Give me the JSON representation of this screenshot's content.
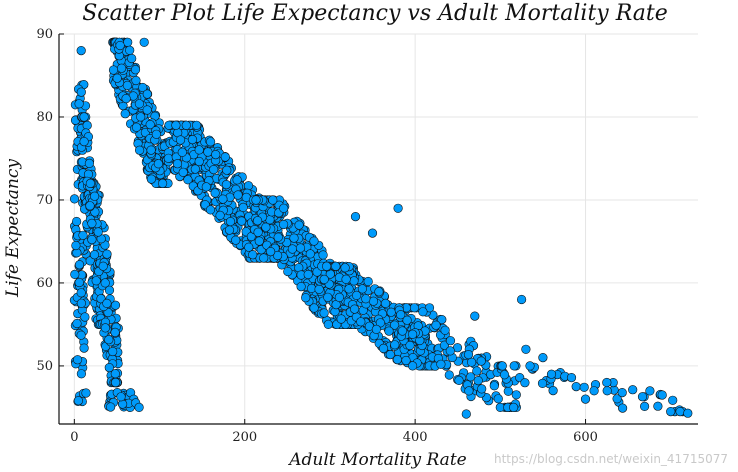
{
  "chart_data": {
    "type": "scatter",
    "title": "Scatter Plot Life Expectancy vs Adult Mortality Rate",
    "xlabel": "Adult Mortality Rate",
    "ylabel": "Life Expectancy",
    "xlim": [
      -18,
      732
    ],
    "ylim": [
      43,
      90
    ],
    "xticks": [
      0,
      200,
      400,
      600
    ],
    "yticks": [
      50,
      60,
      70,
      80,
      90
    ],
    "grid": true,
    "legend": "none",
    "colors": {
      "marker": "#009AFA",
      "edge": "#111111"
    },
    "clusters": [
      {
        "x": [
          0,
          14
        ],
        "y": [
          45.5,
          84
        ],
        "n": 110,
        "trend": "spread"
      },
      {
        "x": [
          8,
          32
        ],
        "y": [
          55,
          80
        ],
        "n": 120,
        "trend": "neg"
      },
      {
        "x": [
          18,
          52
        ],
        "y": [
          48,
          72
        ],
        "n": 150,
        "trend": "neg"
      },
      {
        "x": [
          40,
          75
        ],
        "y": [
          45,
          47
        ],
        "n": 25,
        "trend": "flat"
      },
      {
        "x": [
          45,
          110
        ],
        "y": [
          72,
          89
        ],
        "n": 300,
        "trend": "neg"
      },
      {
        "x": [
          110,
          240
        ],
        "y": [
          63,
          79
        ],
        "n": 500,
        "trend": "neg"
      },
      {
        "x": [
          210,
          330
        ],
        "y": [
          55,
          70
        ],
        "n": 330,
        "trend": "neg"
      },
      {
        "x": [
          290,
          420
        ],
        "y": [
          50,
          62
        ],
        "n": 300,
        "trend": "neg"
      },
      {
        "x": [
          380,
          520
        ],
        "y": [
          45,
          57
        ],
        "n": 150,
        "trend": "neg"
      },
      {
        "x": [
          500,
          720
        ],
        "y": [
          44.5,
          50
        ],
        "n": 45,
        "trend": "neg"
      }
    ],
    "points": [
      [
        8,
        88
      ],
      [
        82,
        89
      ],
      [
        380,
        69
      ],
      [
        525,
        58
      ],
      [
        530,
        52
      ],
      [
        550,
        51
      ],
      [
        560,
        49
      ],
      [
        600,
        46
      ],
      [
        700,
        44.5
      ],
      [
        720,
        44.3
      ],
      [
        460,
        44.2
      ],
      [
        625,
        48
      ],
      [
        690,
        46.5
      ],
      [
        610,
        47
      ],
      [
        470,
        56
      ],
      [
        350,
        66
      ],
      [
        330,
        68
      ],
      [
        76,
        45
      ]
    ]
  },
  "watermark": "https://blog.csdn.net/weixin_41715077"
}
